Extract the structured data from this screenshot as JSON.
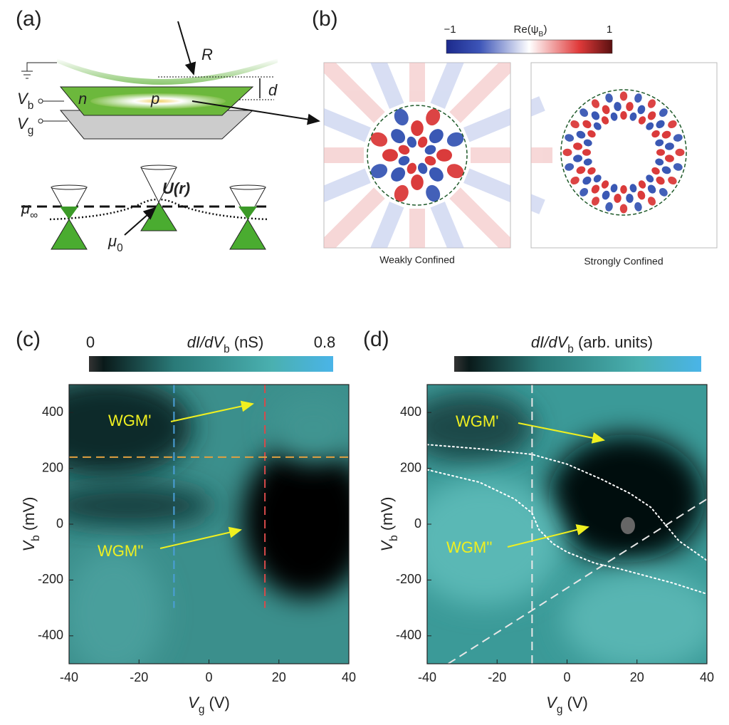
{
  "panel_labels": [
    "(a)",
    "(b)",
    "(c)",
    "(d)"
  ],
  "schematic": {
    "R": "R",
    "d": "d",
    "n": "n",
    "p": "p",
    "Vb": {
      "main": "V",
      "sub": "b"
    },
    "Vg": {
      "main": "V",
      "sub": "g"
    },
    "U": "U(r)",
    "mu_inf": {
      "main": "μ",
      "sub": "∞"
    },
    "mu0": {
      "main": "μ",
      "sub": "0"
    }
  },
  "wavefunction": {
    "colorbar_label": {
      "main": "Re(ψ",
      "sub": "B",
      "rest": ")"
    },
    "colorbar_ticks": [
      "−1",
      "1"
    ],
    "captions": [
      "Weakly Confined",
      "Strongly Confined"
    ]
  },
  "chart_data": [
    {
      "type": "heatmap",
      "colorbar": {
        "title": {
          "main": "dI/dV",
          "sub": "b",
          "rest": " (nS)"
        },
        "clim": [
          0,
          0.8
        ],
        "ticks": [
          0,
          0.8
        ]
      },
      "xlabel": {
        "main": "V",
        "sub": "g",
        "rest": " (V)"
      },
      "ylabel": {
        "main": "V",
        "sub": "b",
        "rest": " (mV)"
      },
      "xlim": [
        -40,
        40
      ],
      "ylim": [
        -500,
        500
      ],
      "xticks": [
        -40,
        -20,
        0,
        20,
        40
      ],
      "yticks": [
        -400,
        -200,
        0,
        200,
        400
      ],
      "lines": [
        {
          "x": [
            -10,
            -10
          ],
          "y": [
            500,
            -300
          ],
          "color": "#4a9fd8",
          "style": "dashed"
        },
        {
          "x": [
            16,
            16
          ],
          "y": [
            500,
            -300
          ],
          "color": "#d84a4a",
          "style": "dashed"
        },
        {
          "x": [
            -40,
            40
          ],
          "y": [
            240,
            240
          ],
          "color": "#e0a040",
          "style": "dashed"
        }
      ],
      "annotations": [
        "WGM'",
        "WGM''"
      ]
    },
    {
      "type": "heatmap",
      "colorbar": {
        "title": {
          "main": "dI/dV",
          "sub": "b",
          "rest": " (arb. units)"
        }
      },
      "xlabel": {
        "main": "V",
        "sub": "g",
        "rest": " (V)"
      },
      "ylabel": {
        "main": "V",
        "sub": "b",
        "rest": " (mV)"
      },
      "xlim": [
        -40,
        40
      ],
      "ylim": [
        -500,
        500
      ],
      "xticks": [
        -40,
        -20,
        0,
        20,
        40
      ],
      "yticks": [
        -400,
        -200,
        0,
        200,
        400
      ],
      "lines": [
        {
          "x": [
            -10,
            -10
          ],
          "y": [
            500,
            -500
          ],
          "color": "#e8e8e8",
          "style": "dashed"
        },
        {
          "x": [
            -34,
            40
          ],
          "y": [
            -500,
            90
          ],
          "color": "#e8e8e8",
          "style": "dashed"
        },
        {
          "x": [
            -40,
            -25,
            -10,
            0,
            10,
            18,
            24,
            28,
            32,
            40
          ],
          "y": [
            285,
            270,
            250,
            215,
            160,
            110,
            60,
            0,
            -60,
            -130
          ],
          "color": "#ffffff",
          "style": "dotted"
        },
        {
          "x": [
            -40,
            -25,
            -15,
            -10,
            -8,
            -4,
            0,
            8,
            15,
            30,
            40
          ],
          "y": [
            195,
            150,
            90,
            40,
            -20,
            -70,
            -100,
            -140,
            -160,
            -210,
            -250
          ],
          "color": "#ffffff",
          "style": "dotted"
        }
      ],
      "annotations": [
        "WGM'",
        "WGM''"
      ]
    }
  ]
}
